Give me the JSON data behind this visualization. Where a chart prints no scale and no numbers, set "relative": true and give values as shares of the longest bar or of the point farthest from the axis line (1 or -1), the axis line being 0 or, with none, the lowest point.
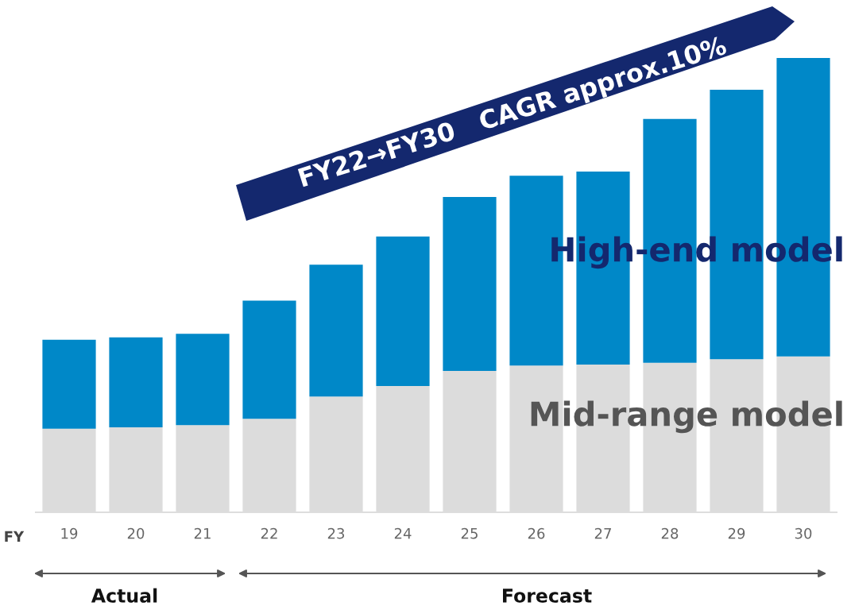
{
  "chart_data": {
    "type": "bar",
    "stacked": true,
    "relative": true,
    "xlabel": "FY",
    "categories": [
      "19",
      "20",
      "21",
      "22",
      "23",
      "24",
      "25",
      "26",
      "27",
      "28",
      "29",
      "30"
    ],
    "series": [
      {
        "name": "Mid-range model",
        "color": "#dcdcdc",
        "values": [
          0.184,
          0.187,
          0.192,
          0.206,
          0.255,
          0.278,
          0.311,
          0.323,
          0.325,
          0.329,
          0.337,
          0.343
        ]
      },
      {
        "name": "High-end model",
        "color": "#0088c8",
        "values": [
          0.196,
          0.198,
          0.201,
          0.26,
          0.29,
          0.329,
          0.383,
          0.418,
          0.425,
          0.537,
          0.593,
          0.657
        ]
      }
    ],
    "annotations": [
      "FY22→FY30   CAGR approx.10%",
      "Actual",
      "Forecast"
    ],
    "grid": false,
    "legend": false
  }
}
